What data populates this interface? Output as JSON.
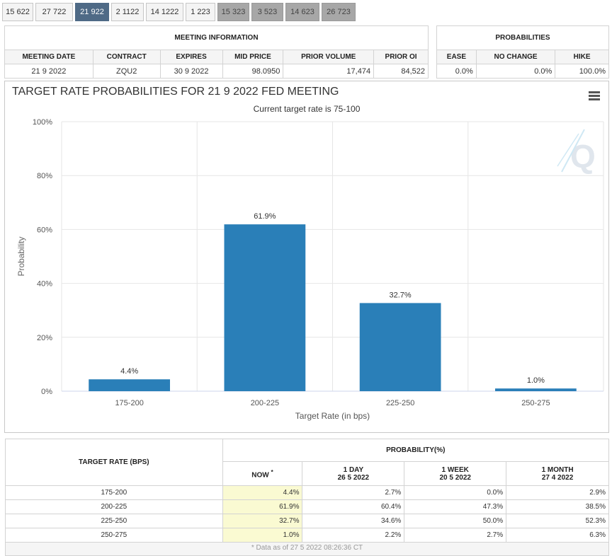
{
  "tabs": [
    {
      "label": "15 622",
      "state": "normal"
    },
    {
      "label": "27 722",
      "state": "normal"
    },
    {
      "label": "21 922",
      "state": "active"
    },
    {
      "label": "2 1122",
      "state": "normal"
    },
    {
      "label": "14 1222",
      "state": "normal"
    },
    {
      "label": "1 223",
      "state": "normal"
    },
    {
      "label": "15 323",
      "state": "dim"
    },
    {
      "label": "3 523",
      "state": "dim"
    },
    {
      "label": "14 623",
      "state": "dim"
    },
    {
      "label": "26 723",
      "state": "dim"
    }
  ],
  "meeting_info": {
    "title": "MEETING INFORMATION",
    "headers": [
      "MEETING DATE",
      "CONTRACT",
      "EXPIRES",
      "MID PRICE",
      "PRIOR VOLUME",
      "PRIOR OI"
    ],
    "values": [
      "21 9 2022",
      "ZQU2",
      "30 9 2022",
      "98.0950",
      "17,474",
      "84,522"
    ]
  },
  "probabilities": {
    "title": "PROBABILITIES",
    "headers": [
      "EASE",
      "NO CHANGE",
      "HIKE"
    ],
    "values": [
      "0.0%",
      "0.0%",
      "100.0%"
    ]
  },
  "chart_data": {
    "type": "bar",
    "title": "TARGET RATE PROBABILITIES FOR 21 9 2022 FED MEETING",
    "subtitle": "Current target rate is 75-100",
    "xlabel": "Target Rate (in bps)",
    "ylabel": "Probability",
    "categories": [
      "175-200",
      "200-225",
      "225-250",
      "250-275"
    ],
    "values": [
      4.4,
      61.9,
      32.7,
      1.0
    ],
    "data_labels": [
      "4.4%",
      "61.9%",
      "32.7%",
      "1.0%"
    ],
    "ylim": [
      0,
      100
    ],
    "yticks": [
      0,
      20,
      40,
      60,
      80,
      100
    ],
    "ytick_labels": [
      "0%",
      "20%",
      "40%",
      "60%",
      "80%",
      "100%"
    ],
    "bar_color": "#2a7fb8",
    "grid": true
  },
  "bottom_table": {
    "col_header": "TARGET RATE (BPS)",
    "group_header": "PROBABILITY(%)",
    "sub_headers": [
      {
        "line1": "NOW",
        "line2": "",
        "mark": "*"
      },
      {
        "line1": "1 DAY",
        "line2": "26 5 2022",
        "mark": ""
      },
      {
        "line1": "1 WEEK",
        "line2": "20 5 2022",
        "mark": ""
      },
      {
        "line1": "1 MONTH",
        "line2": "27 4 2022",
        "mark": ""
      }
    ],
    "rows": [
      {
        "rate": "175-200",
        "vals": [
          "4.4%",
          "2.7%",
          "0.0%",
          "2.9%"
        ]
      },
      {
        "rate": "200-225",
        "vals": [
          "61.9%",
          "60.4%",
          "47.3%",
          "38.5%"
        ]
      },
      {
        "rate": "225-250",
        "vals": [
          "32.7%",
          "34.6%",
          "50.0%",
          "52.3%"
        ]
      },
      {
        "rate": "250-275",
        "vals": [
          "1.0%",
          "2.2%",
          "2.7%",
          "6.3%"
        ]
      }
    ],
    "footnote": "* Data as of 27 5 2022 08:26:36 CT"
  }
}
